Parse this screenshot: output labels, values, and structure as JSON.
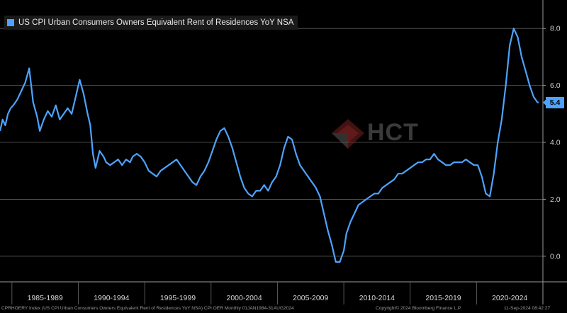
{
  "chart_data": {
    "type": "line",
    "title": "",
    "xlabel": "",
    "ylabel": "",
    "ylim": [
      -0.9,
      9.0
    ],
    "y_ticks": [
      0.0,
      2.0,
      4.0,
      6.0,
      8.0
    ],
    "y_tick_labels": [
      "0.0",
      "2.0",
      "4.0",
      "6.0",
      "8.0"
    ],
    "grid": true,
    "legend_position": "top-left",
    "x_range": [
      1984.0,
      2024.9
    ],
    "x_period_labels": [
      "1985-1989",
      "1990-1994",
      "1995-1999",
      "2000-2004",
      "2005-2009",
      "2010-2014",
      "2015-2019",
      "2020-2024"
    ],
    "x_period_bounds": [
      [
        1984.9,
        1989.9
      ],
      [
        1989.9,
        1994.9
      ],
      [
        1994.9,
        1999.9
      ],
      [
        1999.9,
        2004.9
      ],
      [
        2004.9,
        2009.9
      ],
      [
        2009.9,
        2014.9
      ],
      [
        2014.9,
        2019.9
      ],
      [
        2019.9,
        2024.9
      ]
    ],
    "series": [
      {
        "name": "US CPI Urban Consumers Owners Equivalent Rent of Residences YoY NSA",
        "color": "#4da3ff",
        "x": [
          1984.0,
          1984.2,
          1984.4,
          1984.6,
          1984.8,
          1985.0,
          1985.3,
          1985.6,
          1985.9,
          1986.2,
          1986.5,
          1986.8,
          1987.0,
          1987.3,
          1987.6,
          1987.9,
          1988.2,
          1988.5,
          1988.8,
          1989.1,
          1989.4,
          1989.7,
          1990.0,
          1990.3,
          1990.6,
          1990.8,
          1991.0,
          1991.2,
          1991.5,
          1991.8,
          1992.0,
          1992.3,
          1992.6,
          1992.9,
          1993.2,
          1993.5,
          1993.8,
          1994.0,
          1994.3,
          1994.6,
          1994.9,
          1995.2,
          1995.5,
          1995.8,
          1996.1,
          1996.4,
          1996.7,
          1997.0,
          1997.3,
          1997.6,
          1997.9,
          1998.2,
          1998.5,
          1998.8,
          1999.1,
          1999.4,
          1999.7,
          2000.0,
          2000.3,
          2000.6,
          2000.9,
          2001.2,
          2001.5,
          2001.8,
          2002.1,
          2002.4,
          2002.7,
          2003.0,
          2003.3,
          2003.6,
          2003.9,
          2004.2,
          2004.5,
          2004.8,
          2005.1,
          2005.4,
          2005.7,
          2006.0,
          2006.3,
          2006.6,
          2006.9,
          2007.2,
          2007.5,
          2007.8,
          2008.1,
          2008.4,
          2008.7,
          2009.0,
          2009.3,
          2009.6,
          2009.9,
          2010.1,
          2010.4,
          2010.7,
          2011.0,
          2011.3,
          2011.6,
          2011.9,
          2012.2,
          2012.5,
          2012.8,
          2013.1,
          2013.4,
          2013.7,
          2014.0,
          2014.3,
          2014.6,
          2014.9,
          2015.2,
          2015.5,
          2015.8,
          2016.1,
          2016.4,
          2016.7,
          2017.0,
          2017.3,
          2017.6,
          2017.9,
          2018.2,
          2018.5,
          2018.8,
          2019.1,
          2019.4,
          2019.7,
          2020.0,
          2020.3,
          2020.6,
          2020.9,
          2021.2,
          2021.5,
          2021.8,
          2022.1,
          2022.4,
          2022.7,
          2023.0,
          2023.3,
          2023.6,
          2023.9,
          2024.2,
          2024.5,
          2024.58
        ],
        "values": [
          4.4,
          4.8,
          4.6,
          5.0,
          5.2,
          5.3,
          5.5,
          5.8,
          6.1,
          6.6,
          5.4,
          4.9,
          4.4,
          4.8,
          5.1,
          4.9,
          5.3,
          4.8,
          5.0,
          5.2,
          5.0,
          5.6,
          6.2,
          5.7,
          5.0,
          4.6,
          3.6,
          3.1,
          3.7,
          3.5,
          3.3,
          3.2,
          3.3,
          3.4,
          3.2,
          3.4,
          3.3,
          3.5,
          3.6,
          3.5,
          3.3,
          3.0,
          2.9,
          2.8,
          3.0,
          3.1,
          3.2,
          3.3,
          3.4,
          3.2,
          3.0,
          2.8,
          2.6,
          2.5,
          2.8,
          3.0,
          3.3,
          3.7,
          4.1,
          4.4,
          4.5,
          4.2,
          3.8,
          3.3,
          2.8,
          2.4,
          2.2,
          2.1,
          2.3,
          2.3,
          2.5,
          2.3,
          2.6,
          2.8,
          3.2,
          3.8,
          4.2,
          4.1,
          3.6,
          3.2,
          3.0,
          2.8,
          2.6,
          2.4,
          2.1,
          1.5,
          0.9,
          0.4,
          -0.2,
          -0.2,
          0.2,
          0.8,
          1.2,
          1.5,
          1.8,
          1.9,
          2.0,
          2.1,
          2.2,
          2.2,
          2.4,
          2.5,
          2.6,
          2.7,
          2.9,
          2.9,
          3.0,
          3.1,
          3.2,
          3.3,
          3.3,
          3.4,
          3.4,
          3.6,
          3.4,
          3.3,
          3.2,
          3.2,
          3.3,
          3.3,
          3.3,
          3.4,
          3.3,
          3.2,
          3.2,
          2.8,
          2.2,
          2.1,
          2.9,
          4.0,
          4.8,
          6.0,
          7.4,
          8.0,
          7.7,
          7.0,
          6.5,
          6.0,
          5.6,
          5.4,
          5.4
        ]
      }
    ],
    "last_value_label": "5.4"
  },
  "legend": {
    "label": "US CPI Urban Consumers Owners Equivalent Rent of Residences YoY NSA"
  },
  "watermark": {
    "text": "HCT",
    "subtext": ""
  },
  "footer": {
    "left": "CPRHOERY Index (US CPI Urban Consumers Owners Equivalent Rent of Residences YoY NSA) CPI OER  Monthly 01JAN1984-31AUG2024",
    "middle": "Copyright© 2024 Bloomberg Finance L.P.",
    "right": "11-Sep-2024 08:42:27"
  }
}
